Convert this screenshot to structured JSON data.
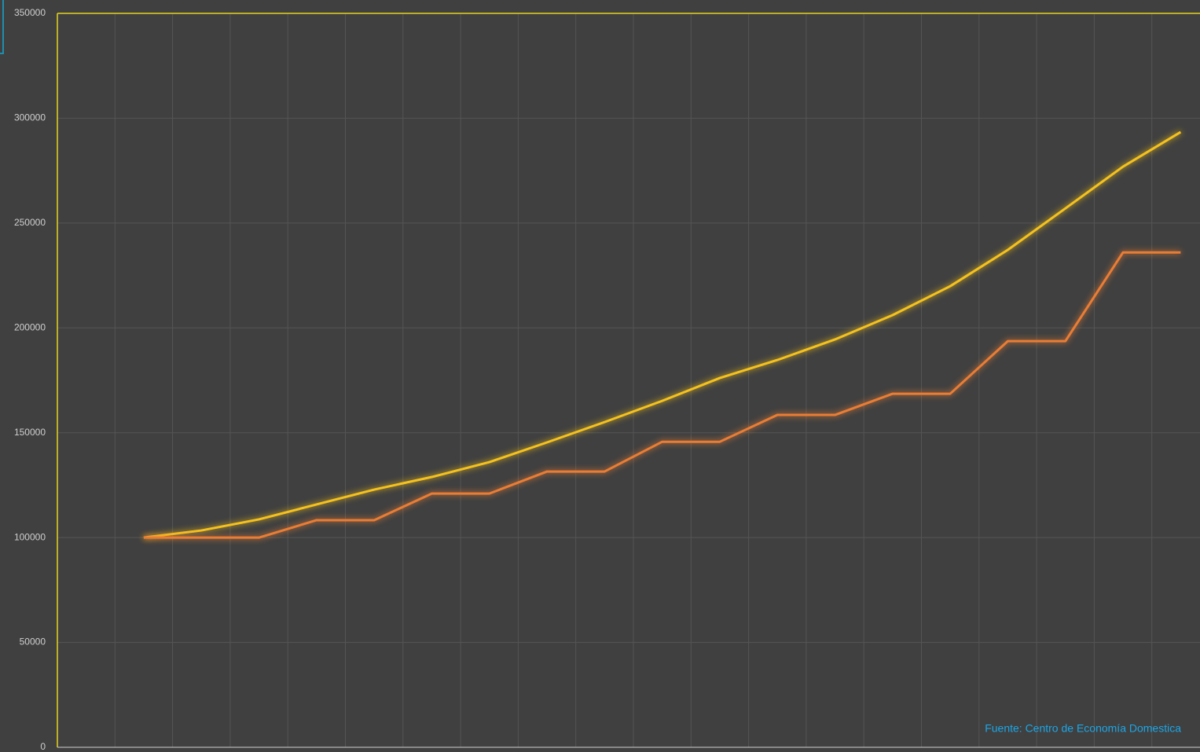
{
  "chart_data": {
    "type": "line",
    "annotation": "Fuente: Centro de Economía Domestica",
    "categories": [
      null,
      null,
      null,
      null,
      null,
      null,
      null,
      null,
      null,
      null,
      null,
      null,
      null,
      null,
      null,
      null,
      null,
      null,
      null,
      null
    ],
    "series": [
      {
        "color": "#f5c21b",
        "values": [
          null,
          100000,
          103400,
          108700,
          115800,
          122900,
          128900,
          136000,
          145400,
          155100,
          165200,
          176100,
          184700,
          194500,
          206100,
          219900,
          237200,
          257000,
          276900,
          293400
        ]
      },
      {
        "color": "#e97d35",
        "values": [
          null,
          100000,
          100000,
          100000,
          108300,
          108300,
          121000,
          121000,
          131500,
          131500,
          145700,
          145700,
          158500,
          158500,
          168600,
          168600,
          193700,
          193700,
          236000,
          236000
        ]
      }
    ],
    "ylim": [
      0,
      350000
    ],
    "yticks": [
      0,
      50000,
      100000,
      150000,
      200000,
      250000,
      300000,
      350000
    ],
    "grid": true
  }
}
